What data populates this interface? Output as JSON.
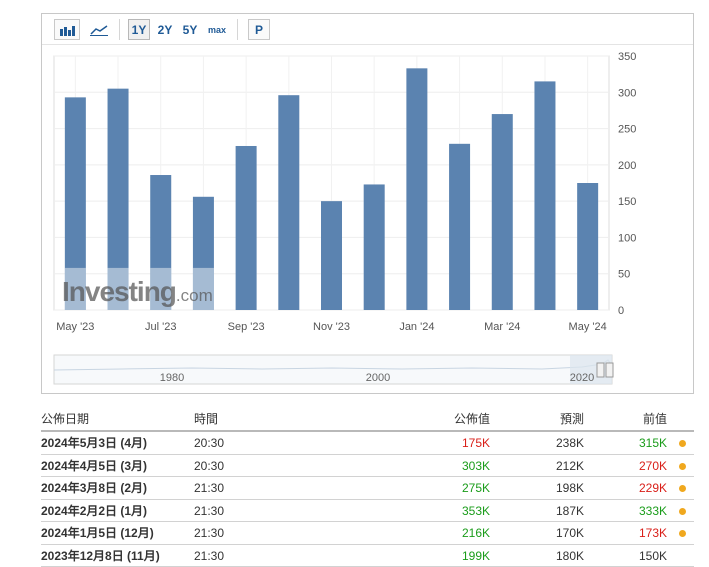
{
  "toolbar": {
    "bar_icon": "bar-chart-icon",
    "line_icon": "line-chart-icon",
    "ranges": [
      "1Y",
      "2Y",
      "5Y",
      "max"
    ],
    "active_range": "1Y",
    "p_label": "P"
  },
  "chart_data": {
    "type": "bar",
    "categories": [
      "May '23",
      "Jun '23",
      "Jul '23",
      "Aug '23",
      "Sep '23",
      "Oct '23",
      "Nov '23",
      "Dec '23",
      "Jan '24",
      "Feb '24",
      "Mar '24",
      "Apr '24",
      "May '24"
    ],
    "values": [
      293,
      305,
      186,
      156,
      226,
      296,
      150,
      173,
      333,
      229,
      270,
      315,
      175
    ],
    "x_tick_labels": [
      "May '23",
      "Jul '23",
      "Sep '23",
      "Nov '23",
      "Jan '24",
      "Mar '24",
      "May '24"
    ],
    "y_tick_labels": [
      "0",
      "50",
      "100",
      "150",
      "200",
      "250",
      "300",
      "350"
    ],
    "ylim": [
      0,
      350
    ],
    "bar_color": "#5b83b0",
    "grid": true,
    "watermark_text": "Investing",
    "watermark_suffix": ".com"
  },
  "navigator": {
    "labels": [
      "1980",
      "2000",
      "2020"
    ]
  },
  "table": {
    "headers": {
      "date": "公佈日期",
      "time": "時間",
      "actual": "公佈值",
      "forecast": "預測",
      "previous": "前值"
    },
    "rows": [
      {
        "date": "2024年5月3日 (4月)",
        "time": "20:30",
        "actual": "175K",
        "actual_trend": "down",
        "forecast": "238K",
        "previous": "315K",
        "previous_trend": "up",
        "dot": true
      },
      {
        "date": "2024年4月5日 (3月)",
        "time": "20:30",
        "actual": "303K",
        "actual_trend": "up",
        "forecast": "212K",
        "previous": "270K",
        "previous_trend": "down",
        "dot": true
      },
      {
        "date": "2024年3月8日 (2月)",
        "time": "21:30",
        "actual": "275K",
        "actual_trend": "up",
        "forecast": "198K",
        "previous": "229K",
        "previous_trend": "down",
        "dot": true
      },
      {
        "date": "2024年2月2日 (1月)",
        "time": "21:30",
        "actual": "353K",
        "actual_trend": "up",
        "forecast": "187K",
        "previous": "333K",
        "previous_trend": "up",
        "dot": true
      },
      {
        "date": "2024年1月5日 (12月)",
        "time": "21:30",
        "actual": "216K",
        "actual_trend": "up",
        "forecast": "170K",
        "previous": "173K",
        "previous_trend": "down",
        "dot": true
      },
      {
        "date": "2023年12月8日 (11月)",
        "time": "21:30",
        "actual": "199K",
        "actual_trend": "up",
        "forecast": "180K",
        "previous": "150K",
        "previous_trend": "neutral",
        "dot": false
      }
    ]
  }
}
